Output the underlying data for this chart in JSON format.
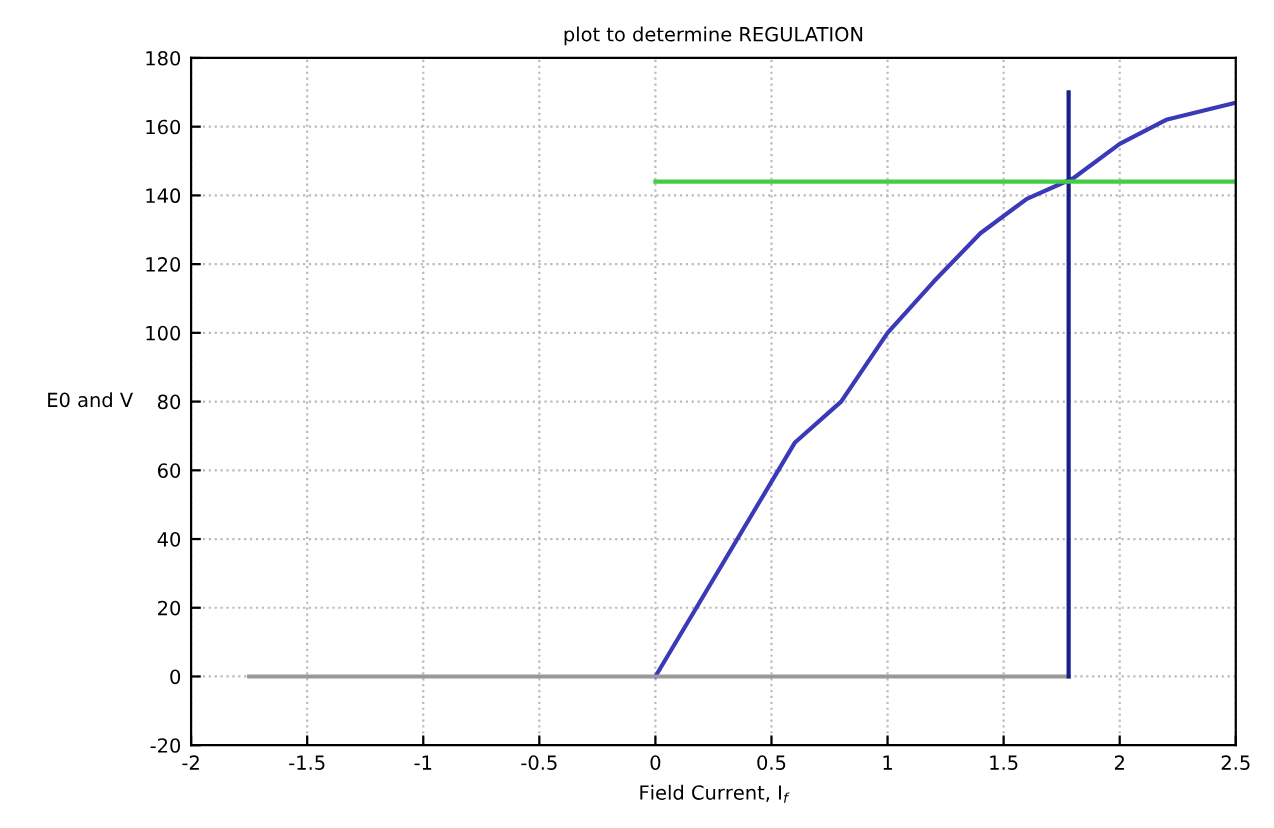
{
  "chart_data": {
    "type": "line",
    "title": "plot to determine REGULATION",
    "xlabel": "Field Current, I$_{f}$",
    "ylabel": "E0 and V",
    "xlim": [
      -2,
      2.5
    ],
    "xticks": [
      -2,
      -1.5,
      -1,
      -0.5,
      0,
      0.5,
      1,
      1.5,
      2,
      2.5
    ],
    "ylim": [
      -20,
      180
    ],
    "yticks": [
      -20,
      0,
      20,
      40,
      60,
      80,
      100,
      120,
      140,
      160,
      180
    ],
    "grid": true,
    "line_style": "solid",
    "marker": "none",
    "series": [
      {
        "color": "#3a3ab8",
        "x": [
          0,
          0.6,
          0.8,
          1.0,
          1.2,
          1.4,
          1.6,
          1.8,
          2.0,
          2.2,
          2.5
        ],
        "values": [
          0,
          68,
          80,
          100,
          115,
          129,
          139,
          145,
          155,
          162,
          167
        ]
      },
      {
        "color": "#999999",
        "x": [
          -1.75,
          1.78
        ],
        "values": [
          0,
          0
        ]
      },
      {
        "color": "#1c1c8c",
        "x": [
          1.78,
          1.78
        ],
        "values": [
          0,
          170
        ]
      },
      {
        "color": "#44cc44",
        "x": [
          0,
          2.5
        ],
        "values": [
          144,
          144
        ]
      }
    ]
  }
}
